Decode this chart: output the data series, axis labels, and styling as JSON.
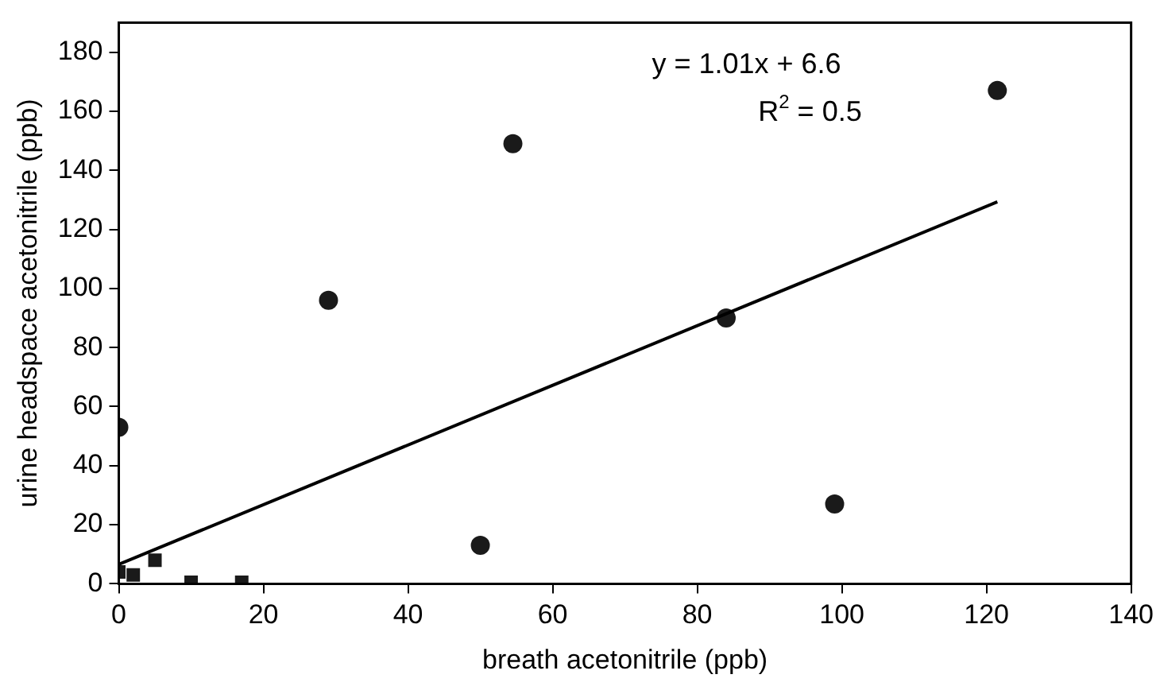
{
  "chart_data": {
    "type": "scatter",
    "xlabel": "breath acetonitrile (ppb)",
    "ylabel": "urine headspace acetonitrile (ppb)",
    "xlim": [
      0,
      140
    ],
    "xticks": [
      0,
      20,
      40,
      60,
      80,
      100,
      120,
      140
    ],
    "ylim": [
      0,
      190
    ],
    "yticks": [
      0,
      20,
      40,
      60,
      80,
      100,
      120,
      140,
      160,
      180
    ],
    "grid": false,
    "legend": false,
    "series": [
      {
        "color": "#1a1a1a",
        "marker": "circle",
        "x": [
          0,
          29,
          50,
          54.5,
          84,
          99,
          121.5
        ],
        "values": [
          53,
          96,
          13,
          149,
          90,
          27,
          167
        ]
      },
      {
        "color": "#1a1a1a",
        "marker": "square",
        "x": [
          0,
          2,
          5,
          10,
          17
        ],
        "values": [
          4,
          3,
          8,
          0.5,
          0.5
        ]
      },
      {
        "type": "line",
        "color": "#000000",
        "marker": "none",
        "x": [
          0,
          121.5
        ],
        "values": [
          6.6,
          129.3
        ]
      }
    ],
    "annotations": [
      "y = 1.01x + 6.6",
      "R$^{2}$ = 0.5"
    ]
  }
}
